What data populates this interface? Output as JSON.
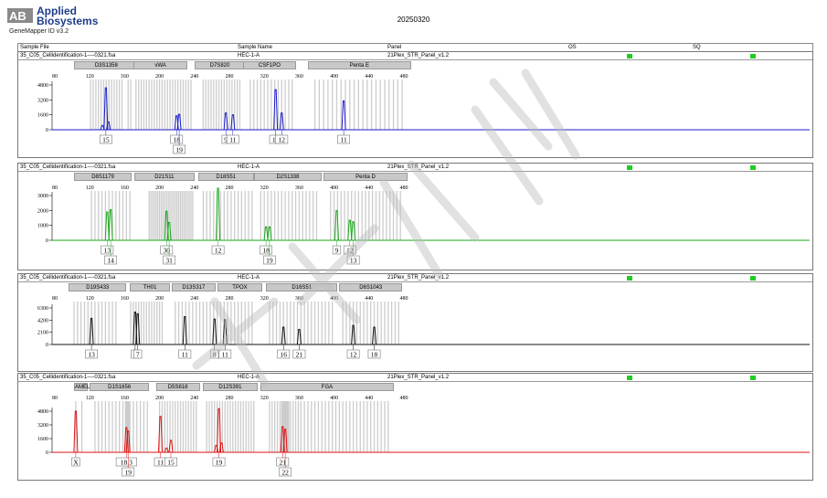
{
  "header": {
    "logo_line1": "Applied",
    "logo_line2": "Biosystems",
    "software": "GeneMapper ID v3.2",
    "date": "20250320",
    "columns": {
      "sample_file": "Sample File",
      "sample_name": "Sample Name",
      "panel": "Panel",
      "os": "OS",
      "sq": "SQ"
    }
  },
  "colors": {
    "panel1": "#1a1acc",
    "panel2": "#18a818",
    "panel3": "#111111",
    "panel4": "#dd1111",
    "quality_ok": "#22cc22",
    "bin": "#cccccc"
  },
  "x_axis_ticks": [
    "80",
    "120",
    "160",
    "200",
    "240",
    "280",
    "320",
    "360",
    "400",
    "440",
    "480"
  ],
  "panels": [
    {
      "sample_file": "35_C05_Cellidentification-1----0321.fsa",
      "sample_name": "HEC-1-A",
      "panel": "21Plex_STR_Panel_v1.2",
      "y_ticks": [
        "4800",
        "3200",
        "1600",
        "0"
      ],
      "loci": [
        {
          "name": "D3S1358",
          "start": 102,
          "end": 176
        },
        {
          "name": "vWA",
          "start": 170,
          "end": 232
        },
        {
          "name": "D7S820",
          "start": 240,
          "end": 298
        },
        {
          "name": "CSF1PO",
          "start": 296,
          "end": 356
        },
        {
          "name": "Penta E",
          "start": 370,
          "end": 488
        }
      ],
      "peaks": [
        {
          "bp": 138.5,
          "h": 4500
        },
        {
          "bp": 134.5,
          "h": 450
        },
        {
          "bp": 141.5,
          "h": 850
        },
        {
          "bp": 219.5,
          "h": 1500
        },
        {
          "bp": 222.5,
          "h": 1650
        },
        {
          "bp": 276,
          "h": 1800
        },
        {
          "bp": 284,
          "h": 1600
        },
        {
          "bp": 333,
          "h": 4300
        },
        {
          "bp": 340,
          "h": 1800
        },
        {
          "bp": 411,
          "h": 3100
        }
      ],
      "bins": [
        121,
        124,
        127,
        130,
        133,
        136,
        139,
        142,
        145,
        148,
        151,
        154,
        157,
        164,
        167,
        173,
        176,
        179,
        182,
        185,
        188,
        191,
        194,
        197,
        200,
        203,
        206,
        209,
        212,
        215,
        218,
        221,
        224,
        227,
        230,
        233,
        236,
        250,
        253,
        256,
        259,
        262,
        265,
        268,
        271,
        274,
        277,
        280,
        283,
        286,
        289,
        292,
        304,
        308,
        312,
        316,
        320,
        324,
        328,
        332,
        336,
        340,
        344,
        348,
        352,
        378,
        383,
        388,
        393,
        398,
        403,
        408,
        413,
        418,
        423,
        428,
        433,
        438,
        443,
        448,
        453,
        458,
        463,
        468,
        473,
        478
      ],
      "alleles": [
        {
          "label": "15",
          "bp": 138.5,
          "row": 0
        },
        {
          "label": "18",
          "bp": 219.5,
          "row": 0
        },
        {
          "label": "19",
          "bp": 222.5,
          "row": 1
        },
        {
          "label": "9",
          "bp": 276,
          "row": 0
        },
        {
          "label": "11",
          "bp": 284,
          "row": 0
        },
        {
          "label": "10",
          "bp": 333,
          "row": 0
        },
        {
          "label": "12",
          "bp": 340,
          "row": 0
        },
        {
          "label": "11",
          "bp": 411,
          "row": 0
        }
      ]
    },
    {
      "sample_file": "35_C05_Cellidentification-1----0321.fsa",
      "sample_name": "HEC-1-A",
      "panel": "21Plex_STR_Panel_v1.2",
      "y_ticks": [
        "3000",
        "2000",
        "1000",
        "0"
      ],
      "loci": [
        {
          "name": "D8S1179",
          "start": 102,
          "end": 168
        },
        {
          "name": "D21S11",
          "start": 171,
          "end": 240
        },
        {
          "name": "D18S51",
          "start": 244,
          "end": 308
        },
        {
          "name": "D2S1338",
          "start": 308,
          "end": 386
        },
        {
          "name": "Penta D",
          "start": 388,
          "end": 484
        }
      ],
      "peaks": [
        {
          "bp": 140,
          "h": 1900
        },
        {
          "bp": 144,
          "h": 2050
        },
        {
          "bp": 208,
          "h": 1950
        },
        {
          "bp": 211,
          "h": 1200
        },
        {
          "bp": 267,
          "h": 3500
        },
        {
          "bp": 322,
          "h": 900
        },
        {
          "bp": 326,
          "h": 900
        },
        {
          "bp": 403,
          "h": 2000
        },
        {
          "bp": 418,
          "h": 1350
        },
        {
          "bp": 422,
          "h": 1250
        }
      ],
      "bins": [
        122,
        126,
        130,
        134,
        138,
        142,
        146,
        150,
        154,
        158,
        162,
        166,
        188,
        190,
        192,
        194,
        196,
        198,
        200,
        202,
        204,
        206,
        208,
        210,
        212,
        214,
        216,
        218,
        220,
        222,
        224,
        226,
        228,
        230,
        232,
        234,
        236,
        238,
        250,
        254,
        258,
        262,
        266,
        270,
        274,
        278,
        282,
        286,
        290,
        294,
        298,
        302,
        306,
        316,
        320,
        324,
        328,
        332,
        336,
        340,
        344,
        348,
        352,
        356,
        360,
        364,
        368,
        372,
        376,
        380,
        396,
        400,
        404,
        408,
        412,
        416,
        420,
        424,
        428,
        432,
        436,
        440,
        444,
        448,
        452,
        456,
        460,
        464,
        468,
        472,
        476
      ],
      "alleles": [
        {
          "label": "13",
          "bp": 140,
          "row": 0
        },
        {
          "label": "14",
          "bp": 144,
          "row": 1
        },
        {
          "label": "30",
          "bp": 208,
          "row": 0
        },
        {
          "label": "31",
          "bp": 211,
          "row": 1
        },
        {
          "label": "12",
          "bp": 267,
          "row": 0
        },
        {
          "label": "18",
          "bp": 322,
          "row": 0
        },
        {
          "label": "19",
          "bp": 326,
          "row": 1
        },
        {
          "label": "9",
          "bp": 403,
          "row": 0
        },
        {
          "label": "12",
          "bp": 418,
          "row": 0
        },
        {
          "label": "13",
          "bp": 422,
          "row": 1
        }
      ]
    },
    {
      "sample_file": "35_C05_Cellidentification-1----0321.fsa",
      "sample_name": "HEC-1-A",
      "panel": "21Plex_STR_Panel_v1.2",
      "y_ticks": [
        "6300",
        "4200",
        "2100",
        "0"
      ],
      "loci": [
        {
          "name": "D19S433",
          "start": 96,
          "end": 162
        },
        {
          "name": "TH01",
          "start": 166,
          "end": 212
        },
        {
          "name": "D13S317",
          "start": 214,
          "end": 264
        },
        {
          "name": "TPOX",
          "start": 266,
          "end": 318
        },
        {
          "name": "D16S51",
          "start": 322,
          "end": 404
        },
        {
          "name": "D6S1043",
          "start": 406,
          "end": 478
        }
      ],
      "peaks": [
        {
          "bp": 122,
          "h": 4500
        },
        {
          "bp": 172,
          "h": 5600
        },
        {
          "bp": 175,
          "h": 5300
        },
        {
          "bp": 229,
          "h": 4800
        },
        {
          "bp": 263,
          "h": 4400
        },
        {
          "bp": 275,
          "h": 4300
        },
        {
          "bp": 342,
          "h": 3000
        },
        {
          "bp": 360,
          "h": 2600
        },
        {
          "bp": 422,
          "h": 3300
        },
        {
          "bp": 446,
          "h": 3000
        }
      ],
      "bins": [
        102,
        106,
        110,
        114,
        118,
        122,
        126,
        130,
        134,
        138,
        142,
        146,
        150,
        167,
        170,
        173,
        176,
        179,
        182,
        185,
        188,
        191,
        194,
        197,
        200,
        203,
        218,
        222,
        226,
        230,
        234,
        238,
        242,
        246,
        250,
        254,
        258,
        262,
        266,
        270,
        274,
        278,
        282,
        286,
        290,
        294,
        298,
        302,
        306,
        326,
        330,
        334,
        338,
        342,
        346,
        350,
        354,
        358,
        362,
        366,
        370,
        374,
        378,
        382,
        386,
        390,
        394,
        398,
        410,
        414,
        418,
        422,
        426,
        430,
        434,
        438,
        442,
        446,
        450,
        454,
        458,
        462,
        466,
        470,
        474
      ],
      "alleles": [
        {
          "label": "13",
          "bp": 122,
          "row": 0
        },
        {
          "label": "6",
          "bp": 172,
          "row": 0
        },
        {
          "label": "7",
          "bp": 175,
          "row": 0
        },
        {
          "label": "11",
          "bp": 229,
          "row": 0
        },
        {
          "label": "8",
          "bp": 263,
          "row": 0
        },
        {
          "label": "11",
          "bp": 275,
          "row": 0
        },
        {
          "label": "16",
          "bp": 342,
          "row": 0
        },
        {
          "label": "21",
          "bp": 360,
          "row": 0
        },
        {
          "label": "12",
          "bp": 422,
          "row": 0
        },
        {
          "label": "18",
          "bp": 446,
          "row": 0
        }
      ]
    },
    {
      "sample_file": "35_C05_Cellidentification-1----0321.fsa",
      "sample_name": "HEC-1-A",
      "panel": "21Plex_STR_Panel_v1.2",
      "y_ticks": [
        "4800",
        "3200",
        "1600",
        "0"
      ],
      "loci": [
        {
          "name": "AMEL",
          "start": 102,
          "end": 118
        },
        {
          "name": "D1S1656",
          "start": 120,
          "end": 188
        },
        {
          "name": "D5S818",
          "start": 196,
          "end": 246
        },
        {
          "name": "D12S391",
          "start": 250,
          "end": 312
        },
        {
          "name": "FGA",
          "start": 316,
          "end": 468
        }
      ],
      "peaks": [
        {
          "bp": 104,
          "h": 4800
        },
        {
          "bp": 162,
          "h": 2900
        },
        {
          "bp": 164,
          "h": 2500
        },
        {
          "bp": 201,
          "h": 4200
        },
        {
          "bp": 208,
          "h": 500
        },
        {
          "bp": 213,
          "h": 1400
        },
        {
          "bp": 265,
          "h": 800
        },
        {
          "bp": 268,
          "h": 5100
        },
        {
          "bp": 271,
          "h": 1100
        },
        {
          "bp": 341,
          "h": 3000
        },
        {
          "bp": 344,
          "h": 2700
        }
      ],
      "bins": [
        104,
        111,
        126,
        130,
        134,
        138,
        142,
        146,
        150,
        154,
        158,
        161,
        162,
        163,
        164,
        165,
        166,
        170,
        174,
        178,
        182,
        186,
        200,
        203,
        206,
        209,
        212,
        215,
        218,
        221,
        224,
        227,
        230,
        233,
        236,
        239,
        242,
        254,
        257,
        260,
        263,
        266,
        269,
        272,
        275,
        278,
        281,
        284,
        287,
        290,
        293,
        296,
        299,
        302,
        305,
        308,
        326,
        329,
        332,
        335,
        338,
        340,
        341,
        342,
        343,
        344,
        345,
        346,
        347,
        348,
        350,
        353,
        356,
        359,
        362,
        366,
        370,
        374,
        378,
        382,
        386,
        390,
        394,
        398,
        402,
        406,
        410,
        414,
        418,
        422,
        426,
        430,
        434,
        438,
        442,
        446,
        450,
        454,
        458,
        462
      ],
      "alleles": [
        {
          "label": "X",
          "bp": 104,
          "row": 0
        },
        {
          "label": "18.3",
          "bp": 162,
          "row": 0
        },
        {
          "label": "19",
          "bp": 164,
          "row": 1
        },
        {
          "label": "11",
          "bp": 201,
          "row": 0
        },
        {
          "label": "15",
          "bp": 213,
          "row": 0
        },
        {
          "label": "19",
          "bp": 268,
          "row": 0
        },
        {
          "label": "21",
          "bp": 341,
          "row": 0
        },
        {
          "label": "22",
          "bp": 344,
          "row": 1
        }
      ]
    }
  ]
}
